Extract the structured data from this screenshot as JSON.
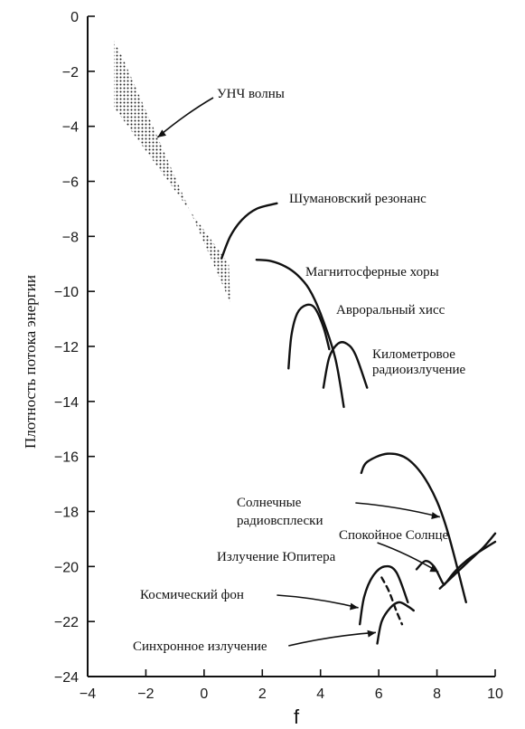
{
  "chart_data": {
    "type": "line",
    "xlabel": "f",
    "ylabel": "Плотность потока энергии",
    "xlim": [
      -4,
      10
    ],
    "ylim": [
      -24,
      0
    ],
    "x_ticks": [
      -4,
      -2,
      0,
      2,
      4,
      6,
      8,
      10
    ],
    "y_ticks": [
      0,
      -2,
      -4,
      -6,
      -8,
      -10,
      -12,
      -14,
      -16,
      -18,
      -20,
      -22,
      -24
    ],
    "grid": false,
    "regions": [
      {
        "name": "УНЧ волны",
        "polygon": [
          [
            -3.1,
            -0.9
          ],
          [
            -2.8,
            -1.5
          ],
          [
            0.9,
            -10.4
          ],
          [
            0.85,
            -9.0
          ],
          [
            -3.1,
            -3.3
          ]
        ]
      }
    ],
    "series": [
      {
        "name": "Шумановский резонанс",
        "x": [
          0.6,
          0.9,
          1.3,
          1.8,
          2.5
        ],
        "y": [
          -8.8,
          -8.0,
          -7.4,
          -7.0,
          -6.8
        ]
      },
      {
        "name": "Магнитосферные хоры",
        "x": [
          1.8,
          2.3,
          2.8,
          3.2,
          3.6,
          4.0,
          4.5,
          4.8
        ],
        "y": [
          -8.85,
          -8.9,
          -9.1,
          -9.4,
          -9.9,
          -10.8,
          -12.4,
          -14.2
        ]
      },
      {
        "name": "Авроральный хисс",
        "x": [
          2.9,
          3.0,
          3.2,
          3.5,
          3.8,
          4.1,
          4.3
        ],
        "y": [
          -12.8,
          -11.6,
          -10.8,
          -10.5,
          -10.6,
          -11.3,
          -12.1
        ]
      },
      {
        "name": "Километровое радиоизлучение",
        "x": [
          4.1,
          4.3,
          4.6,
          4.9,
          5.2,
          5.6
        ],
        "y": [
          -13.5,
          -12.4,
          -11.9,
          -11.9,
          -12.3,
          -13.5
        ]
      },
      {
        "name": "Солнечные радиовсплески",
        "x": [
          5.4,
          5.6,
          6.3,
          7.0,
          7.7,
          8.3,
          9.0
        ],
        "y": [
          -16.6,
          -16.2,
          -15.9,
          -16.1,
          -17.0,
          -18.5,
          -21.3
        ]
      },
      {
        "name": "Спокойное Солнце",
        "x": [
          7.3,
          7.6,
          7.9,
          8.2,
          8.3,
          8.6,
          9.0,
          9.4,
          10.0
        ],
        "y": [
          -20.1,
          -19.8,
          -20.0,
          -20.6,
          -20.6,
          -20.2,
          -19.8,
          -19.5,
          -19.1
        ]
      },
      {
        "name": "Излучение Юпитера",
        "x": [
          8.1,
          8.6,
          9.1,
          9.6,
          10.0
        ],
        "y": [
          -20.8,
          -20.3,
          -19.8,
          -19.3,
          -18.8
        ]
      },
      {
        "name": "Космический фон",
        "x": [
          5.35,
          5.5,
          5.8,
          6.2,
          6.6,
          7.0
        ],
        "y": [
          -22.1,
          -21.1,
          -20.35,
          -20.0,
          -20.2,
          -21.3
        ]
      },
      {
        "name": "Синхронное излучение",
        "x": [
          5.95,
          6.1,
          6.4,
          6.7,
          7.0,
          7.2
        ],
        "y": [
          -22.8,
          -22.0,
          -21.5,
          -21.3,
          -21.45,
          -21.6
        ]
      },
      {
        "name": "dashed",
        "x": [
          6.1,
          6.35,
          6.6,
          6.8
        ],
        "y": [
          -20.4,
          -20.9,
          -21.6,
          -22.1
        ]
      }
    ],
    "annotations": [
      {
        "text": "УНЧ волны"
      },
      {
        "text": "Шумановский резонанс"
      },
      {
        "text": "Магнитосферные хоры"
      },
      {
        "text": "Авроральный хисс"
      },
      {
        "text": "Километровое"
      },
      {
        "text": "радиоизлучение"
      },
      {
        "text": "Солнечные"
      },
      {
        "text": "радиовсплески"
      },
      {
        "text": "Спокойное Солнце"
      },
      {
        "text": "Излучение Юпитера"
      },
      {
        "text": "Космический фон"
      },
      {
        "text": "Синхронное излучение"
      }
    ]
  }
}
